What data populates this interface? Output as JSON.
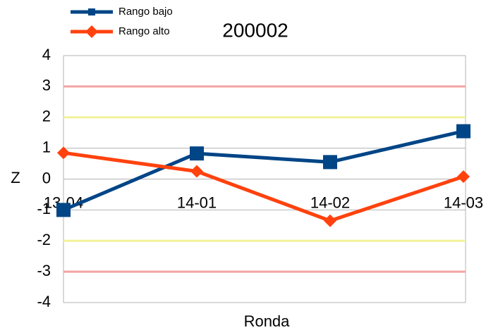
{
  "chart_data": {
    "type": "line",
    "title": "200002",
    "y_label": "Z",
    "x_label": "Ronda",
    "categories": [
      "13-04",
      "14-01",
      "14-02",
      "14-03"
    ],
    "series": [
      {
        "name": "Rango bajo",
        "color": "#004586",
        "marker": "square",
        "values": [
          -1.0,
          0.83,
          0.55,
          1.55
        ]
      },
      {
        "name": "Rango alto",
        "color": "#ff420e",
        "marker": "diamond",
        "values": [
          0.85,
          0.25,
          -1.35,
          0.08
        ]
      }
    ],
    "ylim": [
      -4,
      4
    ],
    "yticks": [
      -4,
      -3,
      -2,
      -1,
      0,
      1,
      2,
      3,
      4
    ],
    "grid": true,
    "reference_lines": [
      {
        "value": 3,
        "color": "#f4a3a3"
      },
      {
        "value": 2,
        "color": "#f2f29a"
      },
      {
        "value": -2,
        "color": "#f2f29a"
      },
      {
        "value": -3,
        "color": "#f4a3a3"
      }
    ],
    "legend": "top-left"
  }
}
